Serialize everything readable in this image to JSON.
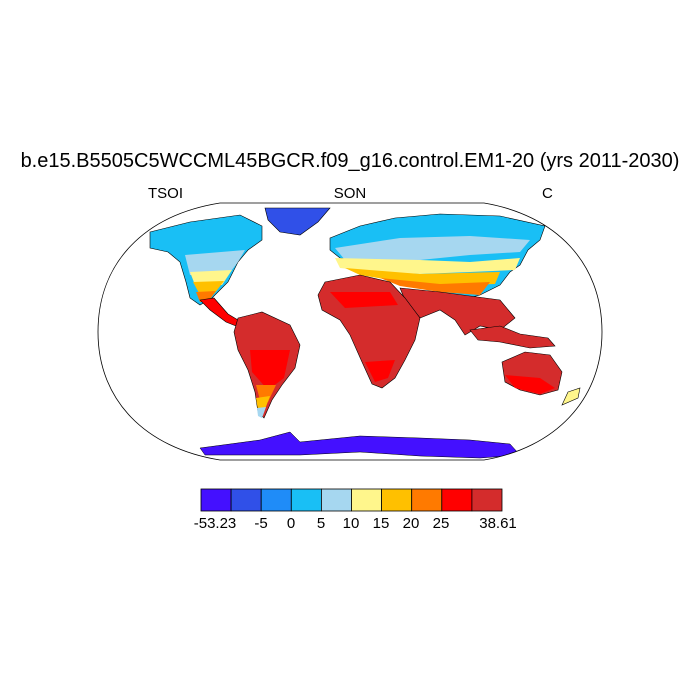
{
  "title": "b.e15.B5505C5WCCML45BGCR.f09_g16.control.EM1-20 (yrs 2011-2030)",
  "variable": "TSOI",
  "season": "SON",
  "units": "C",
  "projection": "Robinson",
  "colorbar": {
    "colors": [
      "#4410ff",
      "#3050e8",
      "#1f8cf8",
      "#19bff5",
      "#a6d7f0",
      "#fff68c",
      "#ffc000",
      "#ff7a00",
      "#ff0000",
      "#d42c2c"
    ],
    "labels": [
      "-53.23",
      "-5",
      "0",
      "5",
      "10",
      "15",
      "20",
      "25",
      "38.61"
    ]
  }
}
